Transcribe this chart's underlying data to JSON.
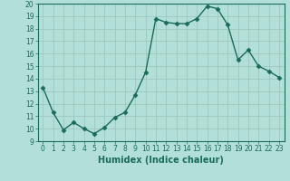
{
  "x": [
    0,
    1,
    2,
    3,
    4,
    5,
    6,
    7,
    8,
    9,
    10,
    11,
    12,
    13,
    14,
    15,
    16,
    17,
    18,
    19,
    20,
    21,
    22,
    23
  ],
  "y": [
    13.3,
    11.3,
    9.9,
    10.5,
    10.0,
    9.6,
    10.1,
    10.9,
    11.3,
    12.7,
    14.5,
    18.8,
    18.5,
    18.4,
    18.4,
    18.8,
    19.8,
    19.6,
    18.3,
    15.5,
    16.3,
    15.0,
    14.6,
    14.1
  ],
  "line_color": "#1a6b5a",
  "marker": "D",
  "marker_size": 2.5,
  "bg_color": "#b2e0d8",
  "grid_color": "#9ec8be",
  "xlabel": "Humidex (Indice chaleur)",
  "ylim": [
    9,
    20
  ],
  "xlim": [
    -0.5,
    23.5
  ],
  "yticks": [
    9,
    10,
    11,
    12,
    13,
    14,
    15,
    16,
    17,
    18,
    19,
    20
  ],
  "xticks": [
    0,
    1,
    2,
    3,
    4,
    5,
    6,
    7,
    8,
    9,
    10,
    11,
    12,
    13,
    14,
    15,
    16,
    17,
    18,
    19,
    20,
    21,
    22,
    23
  ],
  "tick_label_fontsize": 5.5,
  "xlabel_fontsize": 7.0,
  "line_width": 1.0
}
